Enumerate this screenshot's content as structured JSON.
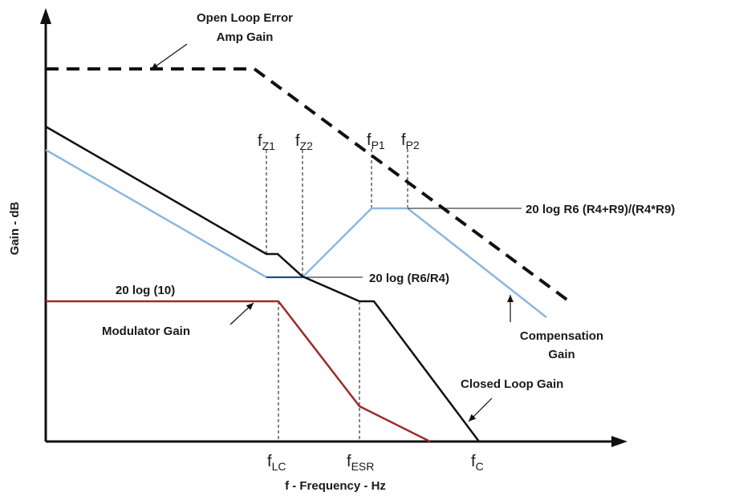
{
  "axes": {
    "ylabel": "Gain - dB",
    "xlabel": "f - Frequency - Hz"
  },
  "frequency_markers": {
    "fz1": {
      "base": "f",
      "sub": "Z1"
    },
    "fz2": {
      "base": "f",
      "sub": "Z2"
    },
    "fp1": {
      "base": "f",
      "sub": "P1"
    },
    "fp2": {
      "base": "f",
      "sub": "P2"
    },
    "flc": {
      "base": "f",
      "sub": "LC"
    },
    "fesr": {
      "base": "f",
      "sub": "ESR"
    },
    "fc": {
      "base": "f",
      "sub": "C"
    }
  },
  "annotations": {
    "open_loop_line1": "Open Loop Error",
    "open_loop_line2": "Amp Gain",
    "gain_r6_r4r9": "20 log R6 (R4+R9)/(R4*R9)",
    "gain_r6_r4": "20 log (R6/R4)",
    "gain_10": "20 log (10)",
    "modulator_gain": "Modulator Gain",
    "compensation_line1": "Compensation",
    "compensation_line2": "Gain",
    "closed_loop_gain": "Closed Loop  Gain"
  },
  "colors": {
    "axis": "#111111",
    "open_loop": "#111111",
    "closed_loop": "#111111",
    "compensation": "#8ab8e0",
    "modulator": "#9b2b2b",
    "flat_r6_r4": "#2c4a7a"
  }
}
